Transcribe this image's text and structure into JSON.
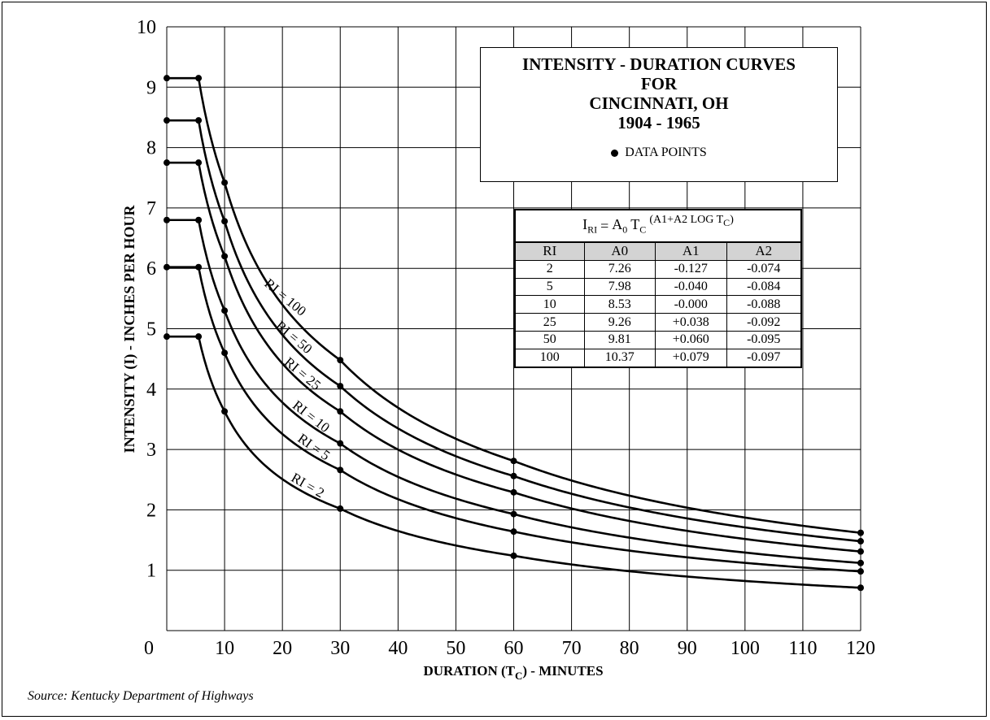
{
  "chart_data": {
    "type": "line",
    "title": [
      "INTENSITY - DURATION CURVES",
      "FOR",
      "CINCINNATI, OH",
      "1904 - 1965"
    ],
    "legend": {
      "marker": "dot",
      "label": "DATA POINTS",
      "placement": "top-right"
    },
    "xlabel": {
      "main": "DURATION (T",
      "sub": "C",
      "tail": ") - MINUTES"
    },
    "ylabel": "INTENSITY (I) - INCHES PER HOUR",
    "xlim": [
      0,
      120
    ],
    "ylim": [
      0,
      10
    ],
    "xticks": [
      "0",
      "10",
      "20",
      "30",
      "40",
      "50",
      "60",
      "70",
      "80",
      "90",
      "100",
      "110",
      "120"
    ],
    "yticks": [
      "1",
      "2",
      "3",
      "4",
      "5",
      "6",
      "7",
      "8",
      "9",
      "10"
    ],
    "grid": true,
    "x_points": [
      0,
      5.5,
      10,
      30,
      60,
      120
    ],
    "series": [
      {
        "name": "RI = 100",
        "values": [
          9.15,
          9.15,
          7.42,
          4.48,
          2.81,
          1.62
        ],
        "label_at": 20,
        "label_angle": 40
      },
      {
        "name": "RI = 50",
        "values": [
          8.45,
          8.45,
          6.78,
          4.05,
          2.56,
          1.48
        ],
        "label_at": 21.5,
        "label_angle": 40
      },
      {
        "name": "RI = 25",
        "values": [
          7.75,
          7.75,
          6.2,
          3.63,
          2.29,
          1.31
        ],
        "label_at": 23,
        "label_angle": 40
      },
      {
        "name": "RI = 10",
        "values": [
          6.8,
          6.8,
          5.3,
          3.1,
          1.93,
          1.12
        ],
        "label_at": 24.5,
        "label_angle": 38
      },
      {
        "name": "RI = 5",
        "values": [
          6.02,
          6.02,
          4.6,
          2.66,
          1.64,
          0.98
        ],
        "label_at": 25,
        "label_angle": 35
      },
      {
        "name": "RI = 2",
        "values": [
          4.87,
          4.87,
          3.63,
          2.02,
          1.24,
          0.71
        ],
        "label_at": 24,
        "label_angle": 30
      }
    ]
  },
  "coefficients": {
    "equation": {
      "lhs": "I",
      "lhs_sub": "RI",
      "eq": "=",
      "a0": "A",
      "a0_sub": "0",
      "t": "T",
      "t_sub": "C",
      "exp": "(A1+A2 LOG T",
      "exp_sub": "C",
      "exp_close": ")"
    },
    "columns": [
      "RI",
      "A0",
      "A1",
      "A2"
    ],
    "rows": [
      [
        "2",
        "7.26",
        "-0.127",
        "-0.074"
      ],
      [
        "5",
        "7.98",
        "-0.040",
        "-0.084"
      ],
      [
        "10",
        "8.53",
        "-0.000",
        "-0.088"
      ],
      [
        "25",
        "9.26",
        "+0.038",
        "-0.092"
      ],
      [
        "50",
        "9.81",
        "+0.060",
        "-0.095"
      ],
      [
        "100",
        "10.37",
        "+0.079",
        "-0.097"
      ]
    ]
  },
  "source": "Source: Kentucky Department of Highways"
}
